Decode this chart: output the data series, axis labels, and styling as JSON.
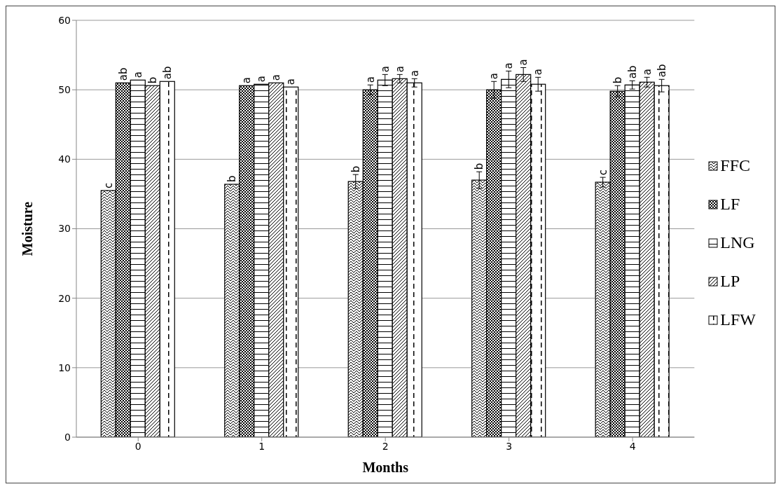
{
  "chart_data": {
    "type": "bar",
    "xlabel": "Months",
    "ylabel": "Moisture",
    "categories": [
      "0",
      "1",
      "2",
      "3",
      "4"
    ],
    "ylim": [
      0,
      60
    ],
    "yticks": [
      0,
      10,
      20,
      30,
      40,
      50,
      60
    ],
    "grid": "y",
    "legend": "right",
    "series": [
      {
        "name": "FFC",
        "color": "#000000",
        "values": [
          35.5,
          36.4,
          36.8,
          37.0,
          36.7
        ],
        "errors": [
          null,
          null,
          1.0,
          1.2,
          0.7
        ],
        "value_labels": [
          "c",
          "b",
          "b",
          "b",
          "c"
        ]
      },
      {
        "name": "LF",
        "color": "#000000",
        "values": [
          51.0,
          50.6,
          50.0,
          50.0,
          49.8
        ],
        "errors": [
          null,
          null,
          0.7,
          1.2,
          0.8
        ],
        "value_labels": [
          "ab",
          "a",
          "a",
          "a",
          "b"
        ]
      },
      {
        "name": "LNG",
        "color": "#000000",
        "values": [
          51.4,
          50.8,
          51.4,
          51.5,
          50.7
        ],
        "errors": [
          null,
          null,
          0.8,
          1.2,
          0.6
        ],
        "value_labels": [
          "a",
          "a",
          "a",
          "a",
          "ab"
        ]
      },
      {
        "name": "LP",
        "color": "#000000",
        "values": [
          50.6,
          51.0,
          51.6,
          52.2,
          51.1
        ],
        "errors": [
          null,
          null,
          0.6,
          1.0,
          0.7
        ],
        "value_labels": [
          "b",
          "a",
          "a",
          "a",
          "a"
        ]
      },
      {
        "name": "LFW",
        "color": "#000000",
        "values": [
          51.2,
          50.4,
          51.0,
          50.8,
          50.6
        ],
        "errors": [
          null,
          null,
          0.6,
          1.0,
          0.9
        ],
        "value_labels": [
          "ab",
          "a",
          "a",
          "a",
          "ab"
        ]
      }
    ]
  }
}
